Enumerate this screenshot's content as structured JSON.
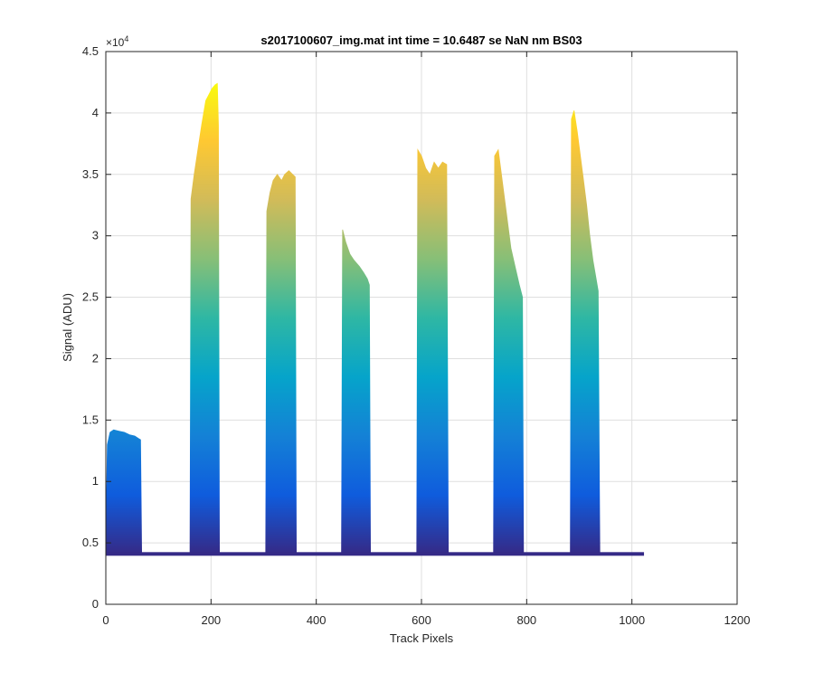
{
  "chart_data": {
    "type": "area",
    "title": "s2017100607_img.mat int time = 10.6487 se  NaN nm BS03",
    "xlabel": "Track Pixels",
    "ylabel": "Signal (ADU)",
    "y_exponent_label": "×10",
    "y_exponent_power": "4",
    "xlim": [
      0,
      1200
    ],
    "ylim": [
      0,
      45000
    ],
    "xticks": [
      0,
      200,
      400,
      600,
      800,
      1000,
      1200
    ],
    "yticks": [
      0,
      0.5,
      1,
      1.5,
      2,
      2.5,
      3,
      3.5,
      4,
      4.5
    ],
    "ytick_labels": [
      "0",
      "0.5",
      "1",
      "1.5",
      "2",
      "2.5",
      "3",
      "3.5",
      "4",
      "4.5"
    ],
    "grid": true,
    "colormap": [
      "#352a87",
      "#0f5cdd",
      "#1481d6",
      "#06a4ca",
      "#2eb7a4",
      "#87bf77",
      "#d1bb59",
      "#fec832",
      "#f9fb0e"
    ],
    "baseline": 4100,
    "x_extent": [
      0,
      1023
    ],
    "series": [
      {
        "points": [
          [
            0,
            5000
          ],
          [
            3,
            13000
          ],
          [
            8,
            14000
          ],
          [
            15,
            14200
          ],
          [
            25,
            14100
          ],
          [
            35,
            14000
          ],
          [
            45,
            13800
          ],
          [
            55,
            13700
          ],
          [
            62,
            13500
          ],
          [
            66,
            13400
          ],
          [
            68,
            4200
          ]
        ]
      },
      {
        "points": [
          [
            160,
            4300
          ],
          [
            162,
            33000
          ],
          [
            168,
            35000
          ],
          [
            175,
            37000
          ],
          [
            182,
            39000
          ],
          [
            190,
            41000
          ],
          [
            196,
            41500
          ],
          [
            202,
            42000
          ],
          [
            208,
            42300
          ],
          [
            212,
            42400
          ],
          [
            214,
            39000
          ],
          [
            216,
            4300
          ]
        ]
      },
      {
        "points": [
          [
            304,
            4300
          ],
          [
            306,
            32000
          ],
          [
            312,
            33500
          ],
          [
            318,
            34500
          ],
          [
            326,
            35000
          ],
          [
            334,
            34500
          ],
          [
            340,
            35000
          ],
          [
            348,
            35300
          ],
          [
            355,
            35000
          ],
          [
            360,
            34800
          ],
          [
            362,
            4300
          ]
        ]
      },
      {
        "points": [
          [
            448,
            4300
          ],
          [
            450,
            30500
          ],
          [
            456,
            29500
          ],
          [
            464,
            28500
          ],
          [
            472,
            28000
          ],
          [
            482,
            27500
          ],
          [
            490,
            27000
          ],
          [
            497,
            26500
          ],
          [
            501,
            26000
          ],
          [
            503,
            4300
          ]
        ]
      },
      {
        "points": [
          [
            591,
            4300
          ],
          [
            593,
            37000
          ],
          [
            600,
            36500
          ],
          [
            608,
            35500
          ],
          [
            616,
            35000
          ],
          [
            624,
            36000
          ],
          [
            632,
            35500
          ],
          [
            640,
            36000
          ],
          [
            648,
            35800
          ],
          [
            651,
            4300
          ]
        ]
      },
      {
        "points": [
          [
            737,
            4300
          ],
          [
            739,
            36500
          ],
          [
            746,
            37000
          ],
          [
            752,
            35000
          ],
          [
            758,
            33000
          ],
          [
            764,
            31000
          ],
          [
            770,
            29000
          ],
          [
            778,
            27500
          ],
          [
            786,
            26000
          ],
          [
            792,
            25000
          ],
          [
            794,
            4300
          ]
        ]
      },
      {
        "points": [
          [
            883,
            4300
          ],
          [
            885,
            39500
          ],
          [
            890,
            40200
          ],
          [
            896,
            38500
          ],
          [
            902,
            36500
          ],
          [
            908,
            34500
          ],
          [
            914,
            32500
          ],
          [
            920,
            30000
          ],
          [
            926,
            28000
          ],
          [
            932,
            26500
          ],
          [
            936,
            25500
          ],
          [
            939,
            4300
          ]
        ]
      }
    ]
  }
}
